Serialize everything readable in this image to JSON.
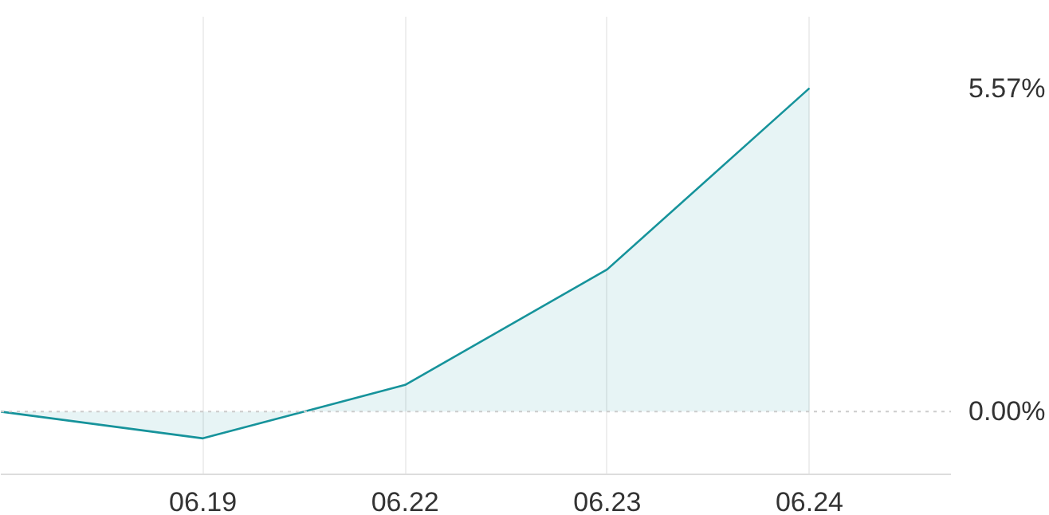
{
  "chart_data": {
    "type": "area",
    "categories": [
      null,
      "06.19",
      "06.22",
      "06.23",
      "06.24"
    ],
    "series": [
      {
        "color": "#16939b",
        "values": [
          0.0,
          -0.46,
          0.46,
          2.45,
          5.57
        ]
      }
    ],
    "ylim": [
      -1.08,
      6.8
    ],
    "yticks": [
      {
        "value": 0,
        "label": "0.00%"
      },
      {
        "value": 5.57,
        "label": "5.57%"
      }
    ],
    "ref_lines": [
      {
        "axis": "y",
        "value": 0,
        "color": "#cccccc",
        "line_style": "dotted"
      }
    ],
    "grid": "x"
  }
}
